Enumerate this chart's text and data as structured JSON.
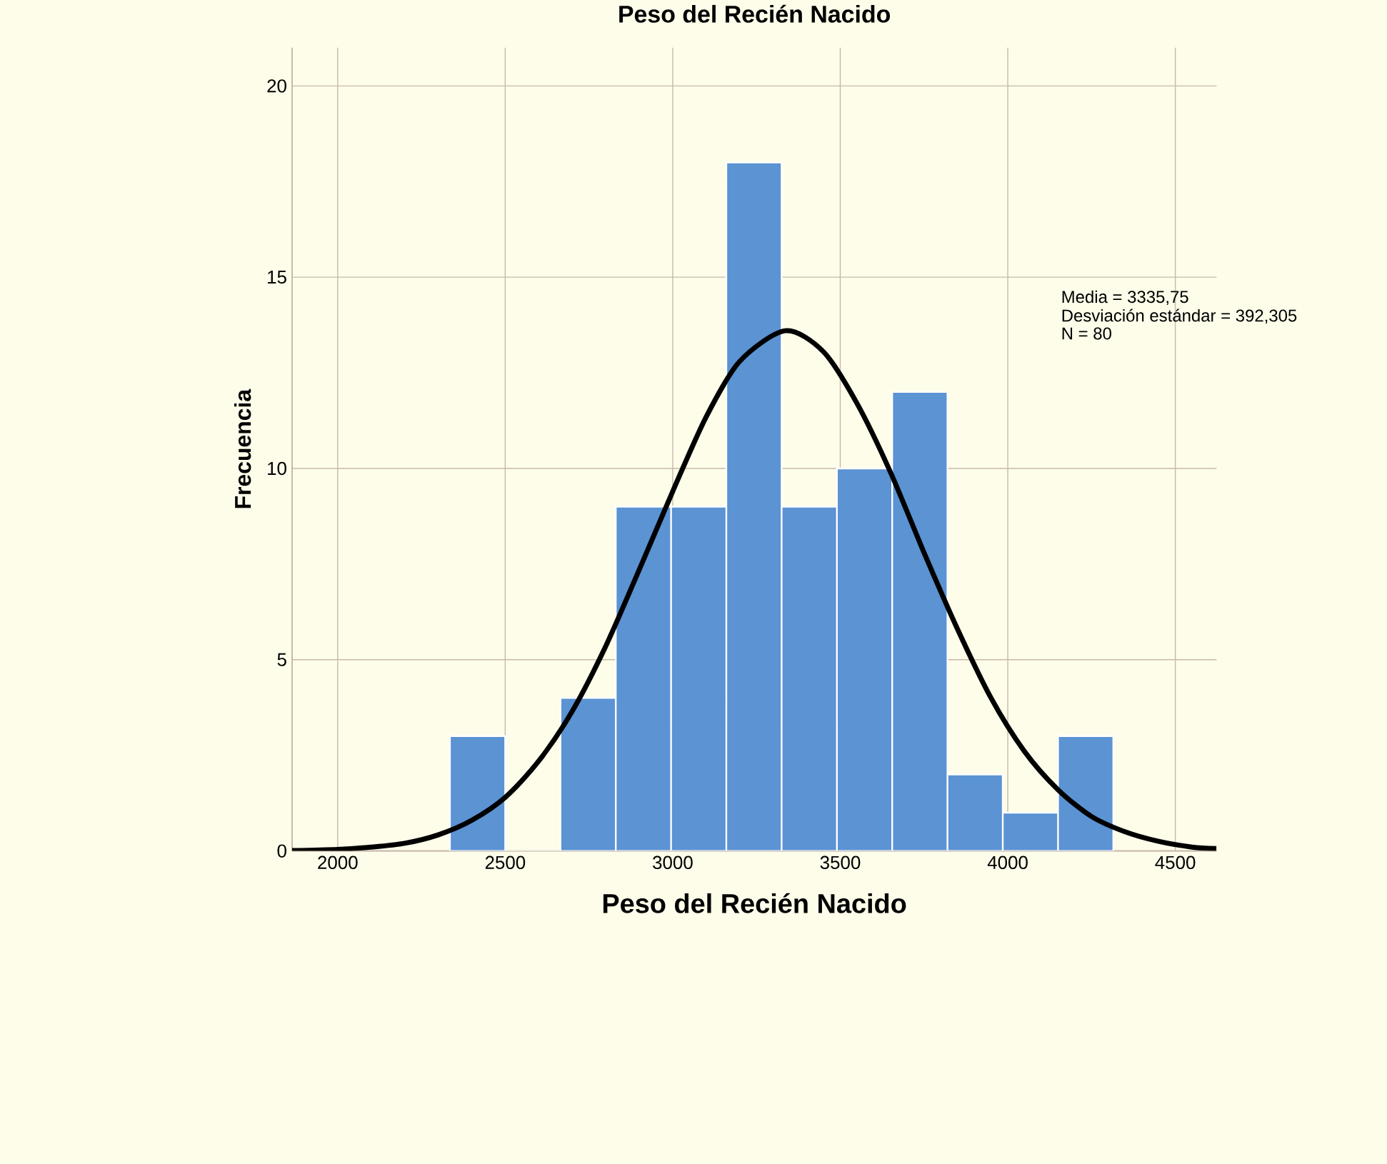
{
  "chart_data": {
    "type": "histogram",
    "title": "Peso del Recién Nacido",
    "xlabel": "Peso del Recién Nacido",
    "ylabel": "Frecuencia",
    "bins": [
      2335,
      2500,
      2665,
      2830,
      2995,
      3160,
      3325,
      3490,
      3655,
      3820,
      3985,
      4150,
      4315
    ],
    "values": [
      3,
      0,
      4,
      9,
      9,
      18,
      9,
      10,
      12,
      2,
      1,
      3
    ],
    "color": "#5b93d3",
    "series": [
      {
        "type": "line",
        "color": "#000000",
        "x": [
          1864,
          2000,
          2100,
          2200,
          2300,
          2400,
          2500,
          2600,
          2700,
          2800,
          2900,
          3000,
          3100,
          3200,
          3336,
          3450,
          3550,
          3650,
          3750,
          3850,
          3950,
          4050,
          4150,
          4250,
          4350,
          4450,
          4550,
          4623
        ],
        "values": [
          0.01,
          0.04,
          0.1,
          0.2,
          0.42,
          0.8,
          1.4,
          2.35,
          3.65,
          5.35,
          7.35,
          9.4,
          11.35,
          12.8,
          13.6,
          13.05,
          11.7,
          9.9,
          7.8,
          5.8,
          4.0,
          2.6,
          1.6,
          0.9,
          0.5,
          0.25,
          0.1,
          0.06
        ]
      }
    ],
    "xlim": [
      1864,
      4623
    ],
    "ylim": [
      0,
      21
    ],
    "xticks": [
      2000,
      2500,
      3000,
      3500,
      4000,
      4500
    ],
    "yticks": [
      0,
      5,
      10,
      15,
      20
    ],
    "grid": true,
    "annotations": [
      "Media = 3335,75",
      "Desviación estándar = 392,305",
      "N = 80"
    ]
  }
}
